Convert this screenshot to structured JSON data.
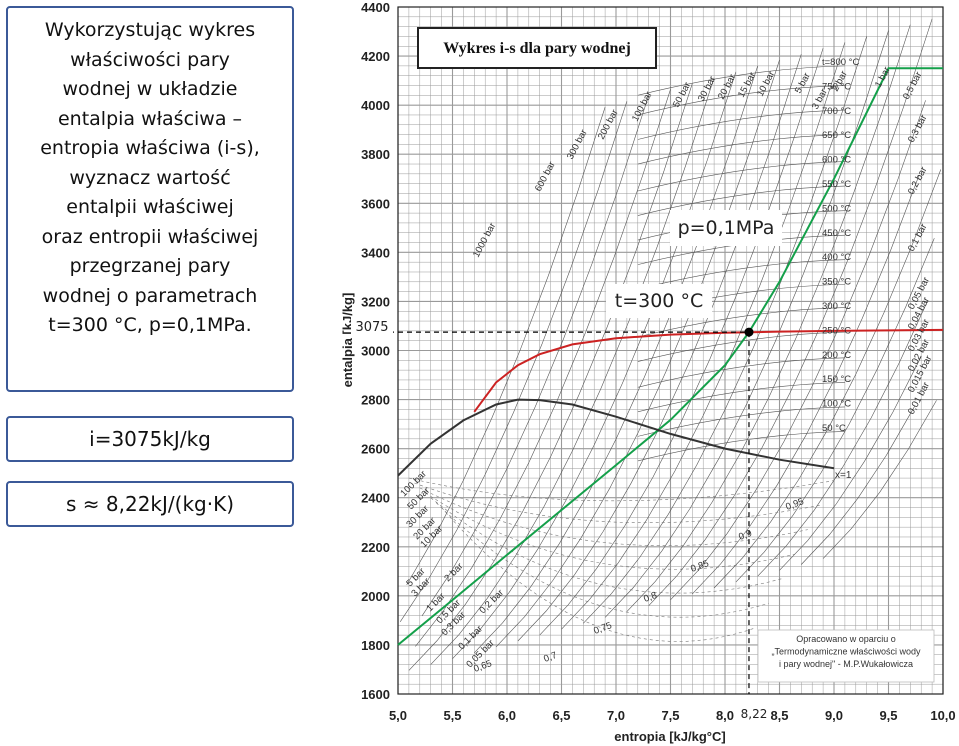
{
  "task": {
    "lines": [
      "Wykorzystując wykres",
      "właściwości pary",
      "wodnej w układzie",
      "entalpia właściwa –",
      "entropia właściwa (i-s),",
      "wyznacz wartość",
      "entalpii właściwej",
      "oraz entropii właściwej",
      "przegrzanej pary",
      "wodnej o parametrach",
      "t=300 °C, p=0,1MPa."
    ]
  },
  "answers": {
    "enthalpy": "i=3075kJ/kg",
    "entropy": "s ≈ 8,22kJ/(kg·K)"
  },
  "chart_data": {
    "type": "line",
    "title": "Wykres i-s dla pary wodnej",
    "xlabel": "entropia [kJ/kg°C]",
    "ylabel": "entalpia [kJ/kg]",
    "xlim": [
      5.0,
      10.0
    ],
    "ylim": [
      1600,
      4400
    ],
    "x_ticks": [
      "5,0",
      "5,5",
      "6,0",
      "6,5",
      "7,0",
      "7,5",
      "8,0",
      "8,5",
      "9,0",
      "9,5",
      "10,0"
    ],
    "y_ticks": [
      "1600",
      "1800",
      "2000",
      "2200",
      "2400",
      "2600",
      "2800",
      "3000",
      "3200",
      "3400",
      "3600",
      "3800",
      "4000",
      "4200",
      "4400"
    ],
    "grid": true,
    "series": [
      {
        "name": "p=0,1MPa",
        "color": "#14a04a",
        "x": [
          5.0,
          5.5,
          6.0,
          6.5,
          7.0,
          7.5,
          8.0,
          8.22,
          8.5,
          9.0,
          9.2,
          9.5,
          10.0
        ],
        "y": [
          1800,
          1983,
          2167,
          2350,
          2533,
          2717,
          2940,
          3075,
          3280,
          3700,
          3880,
          4150,
          4150
        ]
      },
      {
        "name": "t=300°C",
        "color": "#cc2222",
        "x": [
          5.7,
          5.9,
          6.1,
          6.3,
          6.6,
          7.0,
          7.5,
          8.0,
          8.5,
          9.0,
          9.5,
          10.0
        ],
        "y": [
          2750,
          2870,
          2940,
          2985,
          3025,
          3050,
          3065,
          3072,
          3077,
          3080,
          3082,
          3084
        ]
      },
      {
        "name": "x=1",
        "color": "#333333",
        "x": [
          5.0,
          5.3,
          5.6,
          5.9,
          6.1,
          6.3,
          6.6,
          7.0,
          7.5,
          8.0,
          8.5,
          9.0
        ],
        "y": [
          2490,
          2620,
          2715,
          2780,
          2800,
          2798,
          2780,
          2730,
          2660,
          2600,
          2555,
          2520
        ]
      }
    ],
    "isobar_labels": [
      "1000 bar",
      "600 bar",
      "300 bar",
      "200 bar",
      "100 bar",
      "50 bar",
      "30 bar",
      "20 bar",
      "15 bar",
      "10 bar",
      "5 bar",
      "3 bar",
      "2 bar",
      "1 bar",
      "0,5 bar",
      "0,3 bar",
      "0,2 bar",
      "0,1 bar",
      "0,05 bar",
      "0,04 bar",
      "0,03 bar",
      "0,02 bar",
      "0,015 bar",
      "0,01 bar"
    ],
    "isotherm_labels": [
      "t=800 °C",
      "750 °C",
      "700 °C",
      "650 °C",
      "600 °C",
      "550 °C",
      "500 °C",
      "450 °C",
      "400 °C",
      "350 °C",
      "300 °C",
      "250 °C",
      "200 °C",
      "150 °C",
      "100 °C",
      "50 °C"
    ],
    "quality_labels": [
      "0,95",
      "0,9",
      "0,85",
      "0,8",
      "0,75",
      "0,7",
      "0,65"
    ],
    "saturation_label": "x=1",
    "pressure_low_labels": [
      "100 bar",
      "50 bar",
      "30 bar",
      "20 bar",
      "10 bar",
      "5 bar",
      "3 bar",
      "2 bar",
      "1 bar",
      "0,5 bar",
      "0,3 bar",
      "0,2 bar",
      "0,1 bar",
      "0,05 bar"
    ],
    "annotations": {
      "pressure": "p=0,1MPa",
      "temperature": "t=300 °C",
      "i_value": "3075",
      "s_value": "8,22"
    },
    "point": {
      "x": 8.22,
      "y": 3075
    },
    "note": [
      "Opracowano w oparciu o",
      "„Termodynamiczne właściwości wody",
      "i pary wodnej\" - M.P.Wukałowicza"
    ],
    "colors": {
      "grid": "#9a9a9a",
      "box_border": "#3b5998"
    }
  }
}
